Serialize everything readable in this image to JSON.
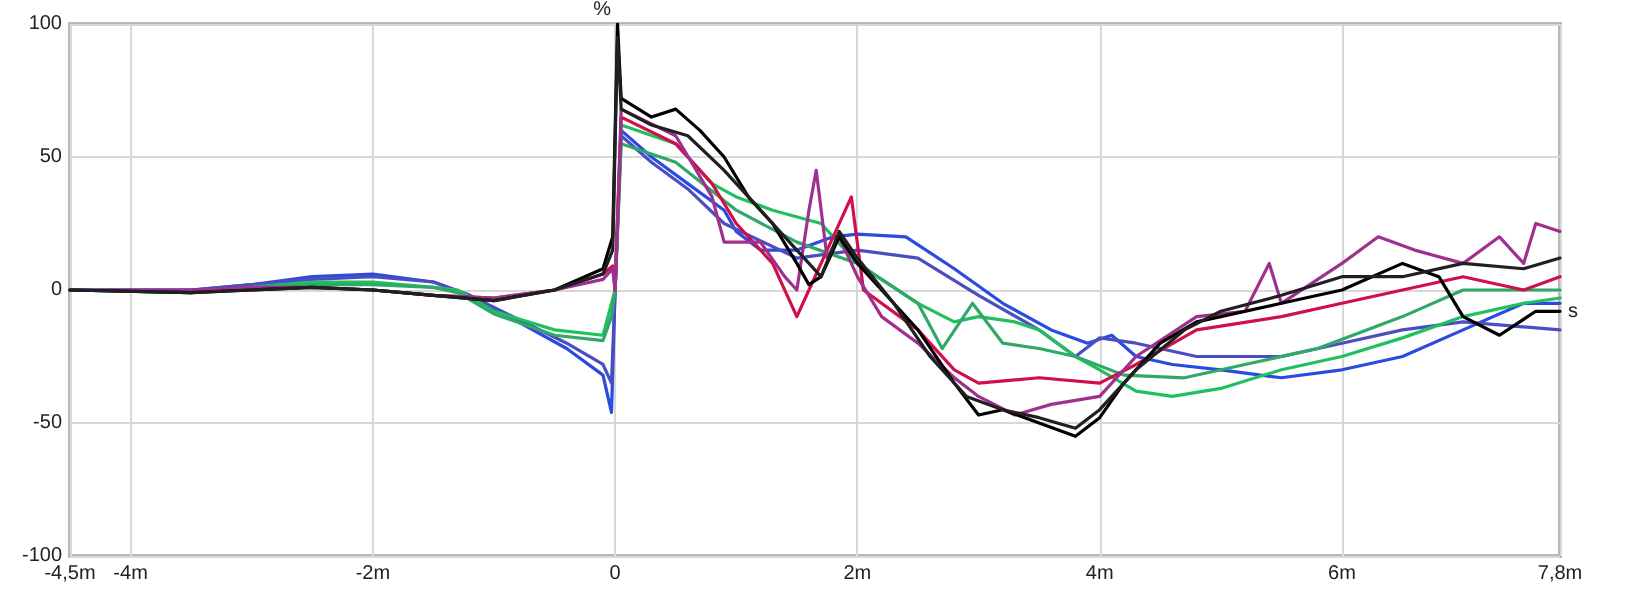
{
  "chart_data": {
    "type": "line",
    "xlabel": "s",
    "ylabel": "%",
    "xlim": [
      -4.5,
      7.8
    ],
    "ylim": [
      -100,
      100
    ],
    "xticks": [
      {
        "value": -4.5,
        "label": "-4,5m"
      },
      {
        "value": -4,
        "label": "-4m"
      },
      {
        "value": -2,
        "label": "-2m"
      },
      0,
      {
        "value": 2,
        "label": "2m"
      },
      {
        "value": 4,
        "label": "4m"
      },
      {
        "value": 6,
        "label": "6m"
      },
      {
        "value": 7.8,
        "label": "7,8m"
      }
    ],
    "yticks": [
      -100,
      -50,
      0,
      50,
      100
    ],
    "grid": true,
    "marker": "none",
    "line_style": "solid",
    "series": [
      {
        "color": "#2a4ae0",
        "x": [
          -4.5,
          -3.5,
          -3,
          -2.5,
          -2,
          -1.5,
          -1.2,
          -0.8,
          -0.4,
          -0.1,
          -0.03,
          0,
          0.05,
          0.3,
          0.6,
          0.9,
          1,
          1.2,
          1.5,
          1.8,
          2,
          2.4,
          2.8,
          3.2,
          3.6,
          3.9,
          4.1,
          4.3,
          4.6,
          5,
          5.5,
          6,
          6.5,
          7,
          7.5,
          7.8
        ],
        "values": [
          0,
          0,
          2,
          5,
          6,
          3,
          -2,
          -12,
          -22,
          -32,
          -46,
          0,
          60,
          50,
          40,
          30,
          22,
          15,
          15,
          20,
          21,
          20,
          8,
          -5,
          -15,
          -20,
          -17,
          -25,
          -28,
          -30,
          -33,
          -30,
          -25,
          -15,
          -5,
          -5
        ]
      },
      {
        "color": "#4a4ec0",
        "x": [
          -4.5,
          -3.5,
          -3,
          -2.5,
          -2,
          -1.5,
          -1.2,
          -0.8,
          -0.4,
          -0.1,
          -0.03,
          0,
          0.05,
          0.3,
          0.6,
          0.9,
          1.5,
          2,
          2.5,
          3,
          3.5,
          3.8,
          4,
          4.3,
          4.8,
          5.5,
          6,
          6.5,
          7,
          7.8
        ],
        "values": [
          0,
          0,
          2,
          4,
          5,
          3,
          -2,
          -11,
          -20,
          -28,
          -35,
          0,
          58,
          48,
          38,
          25,
          12,
          15,
          12,
          -2,
          -15,
          -25,
          -18,
          -20,
          -25,
          -25,
          -20,
          -15,
          -12,
          -15
        ]
      },
      {
        "color": "#20c060",
        "x": [
          -4.5,
          -3.5,
          -3,
          -2.5,
          -2,
          -1.5,
          -1.3,
          -1,
          -0.5,
          -0.1,
          -0.03,
          0,
          0.05,
          0.5,
          0.8,
          1,
          1.3,
          1.7,
          2,
          2.5,
          2.8,
          3,
          3.3,
          3.5,
          3.8,
          4,
          4.3,
          4.6,
          5,
          5.5,
          6,
          6.5,
          7,
          7.5,
          7.8
        ],
        "values": [
          0,
          -1,
          1,
          3,
          3,
          1,
          0,
          -8,
          -15,
          -17,
          -5,
          0,
          62,
          55,
          40,
          35,
          30,
          25,
          10,
          -5,
          -12,
          -10,
          -12,
          -15,
          -25,
          -30,
          -38,
          -40,
          -37,
          -30,
          -25,
          -18,
          -10,
          -5,
          -3
        ]
      },
      {
        "color": "#30a868",
        "x": [
          -4.5,
          -3.5,
          -3,
          -2.5,
          -2,
          -1.5,
          -1.3,
          -1,
          -0.5,
          -0.1,
          -0.03,
          0,
          0.05,
          0.5,
          1,
          1.5,
          2,
          2.5,
          2.7,
          2.95,
          3.2,
          3.5,
          3.8,
          4.2,
          4.7,
          5.2,
          5.8,
          6.5,
          7,
          7.5,
          7.8
        ],
        "values": [
          0,
          -1,
          1,
          2,
          2,
          1,
          -1,
          -9,
          -17,
          -19,
          -10,
          0,
          55,
          48,
          30,
          18,
          10,
          -5,
          -22,
          -5,
          -20,
          -22,
          -25,
          -32,
          -33,
          -28,
          -22,
          -10,
          0,
          0,
          0
        ]
      },
      {
        "color": "#d0104a",
        "x": [
          -2,
          -1.5,
          -1,
          -0.5,
          -0.1,
          -0.02,
          0,
          0.05,
          0.5,
          0.8,
          1,
          1.3,
          1.5,
          1.6,
          1.8,
          1.95,
          2.05,
          2.5,
          2.8,
          3,
          3.5,
          4,
          4.3,
          4.8,
          5.5,
          6,
          6.5,
          7,
          7.5,
          7.8
        ],
        "values": [
          0,
          -2,
          -3,
          0,
          6,
          9,
          0,
          65,
          55,
          40,
          25,
          10,
          -10,
          0,
          20,
          35,
          0,
          -15,
          -30,
          -35,
          -33,
          -35,
          -28,
          -15,
          -10,
          -5,
          0,
          5,
          0,
          5
        ]
      },
      {
        "color": "#a03090",
        "x": [
          -4.5,
          -3.5,
          -3,
          -2.5,
          -2,
          -1.5,
          -1,
          -0.5,
          -0.1,
          -0.02,
          0,
          0.05,
          0.5,
          0.8,
          0.9,
          1.2,
          1.4,
          1.5,
          1.6,
          1.66,
          1.75,
          1.85,
          2,
          2.2,
          2.5,
          2.8,
          3,
          3.3,
          3.6,
          4,
          4.3,
          4.8,
          5.2,
          5.4,
          5.5,
          6,
          6.3,
          6.6,
          7,
          7.3,
          7.5,
          7.6,
          7.8
        ],
        "values": [
          0,
          0,
          1,
          1,
          0,
          -2,
          -3,
          0,
          4,
          8,
          0,
          68,
          58,
          35,
          18,
          18,
          5,
          0,
          30,
          45,
          12,
          20,
          5,
          -10,
          -20,
          -33,
          -40,
          -47,
          -43,
          -40,
          -25,
          -10,
          -8,
          10,
          -5,
          10,
          20,
          15,
          10,
          20,
          10,
          25,
          22
        ]
      },
      {
        "color": "#000000",
        "x": [
          -4.5,
          -3.5,
          -3,
          -2.5,
          -2,
          -1.5,
          -1,
          -0.5,
          -0.1,
          -0.02,
          0.02,
          0.05,
          0.3,
          0.5,
          0.7,
          0.9,
          1.1,
          1.3,
          1.5,
          1.6,
          1.7,
          1.85,
          2,
          2.2,
          2.5,
          2.8,
          3,
          3.2,
          3.5,
          3.8,
          4,
          4.2,
          4.5,
          4.8,
          5,
          5.5,
          6,
          6.5,
          6.8,
          7,
          7.3,
          7.6,
          7.8
        ],
        "values": [
          0,
          -1,
          0,
          1,
          0,
          -2,
          -4,
          0,
          8,
          20,
          100,
          72,
          65,
          68,
          60,
          50,
          35,
          25,
          10,
          2,
          5,
          20,
          10,
          0,
          -15,
          -35,
          -47,
          -45,
          -50,
          -55,
          -48,
          -35,
          -20,
          -12,
          -10,
          -5,
          0,
          10,
          5,
          -10,
          -17,
          -8,
          -8
        ]
      },
      {
        "color": "#202020",
        "x": [
          -4.5,
          -3.5,
          -3,
          -2.5,
          -2,
          -1.5,
          -1,
          -0.5,
          -0.1,
          -0.02,
          0.02,
          0.05,
          0.3,
          0.6,
          0.9,
          1.2,
          1.5,
          1.7,
          1.85,
          2,
          2.3,
          2.6,
          2.9,
          3.2,
          3.5,
          3.8,
          4,
          4.3,
          4.7,
          5,
          5.5,
          6,
          6.5,
          7,
          7.5,
          7.8
        ],
        "values": [
          0,
          -1,
          0,
          1,
          0,
          -2,
          -4,
          0,
          6,
          15,
          95,
          68,
          62,
          58,
          45,
          30,
          15,
          5,
          22,
          12,
          -5,
          -25,
          -40,
          -45,
          -48,
          -52,
          -45,
          -30,
          -15,
          -8,
          -2,
          5,
          5,
          10,
          8,
          12
        ]
      }
    ]
  }
}
